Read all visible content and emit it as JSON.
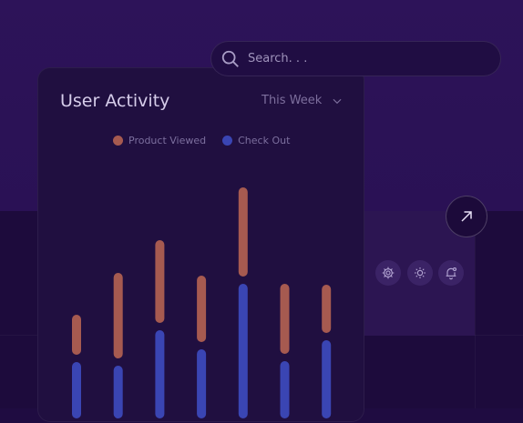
{
  "search": {
    "placeholder": "Search. . ."
  },
  "card": {
    "title": "User Activity",
    "period": "This Week"
  },
  "colors": {
    "product_viewed": "#a65a50",
    "check_out": "#3a45b3"
  },
  "icons": [
    "search-icon",
    "settings-icon",
    "brightness-icon",
    "notification-icon",
    "arrow-up-right-icon",
    "chevron-down-icon"
  ],
  "chart_data": {
    "type": "bar",
    "stacked": true,
    "categories": [
      "",
      "",
      "",
      "",
      "",
      "",
      ""
    ],
    "series": [
      {
        "name": "Product Viewed",
        "values": [
          44,
          94,
          91,
          73,
          98,
          77,
          53
        ]
      },
      {
        "name": "Check Out",
        "values": [
          62,
          58,
          97,
          76,
          148,
          63,
          86
        ]
      }
    ],
    "legend": "top-center",
    "grid": false
  }
}
